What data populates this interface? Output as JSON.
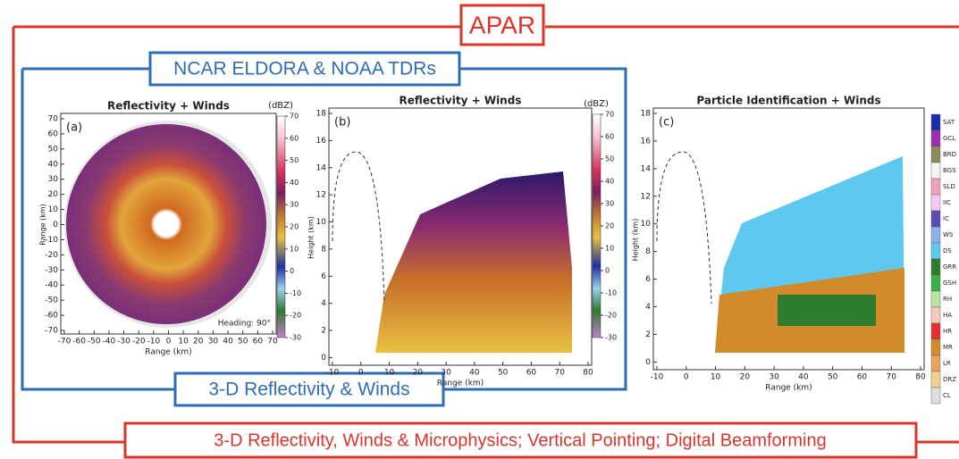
{
  "header": {
    "title": "APAR"
  },
  "airborne": {
    "title": "NCAR ELDORA & NOAA TDRs",
    "caption": "3-D Reflectivity & Winds"
  },
  "footer": {
    "caption": "3-D Reflectivity, Winds & Microphysics; Vertical Pointing; Digital Beamforming"
  },
  "panels": [
    {
      "label": "(a)",
      "title": "Reflectivity + Winds",
      "x_label": "Range (km)",
      "y_label": "Range (km)",
      "xlim": [
        -70,
        70
      ],
      "ylim": [
        -70,
        70
      ],
      "xticks": [
        -70,
        -60,
        -50,
        -40,
        -30,
        -20,
        -10,
        0,
        10,
        20,
        30,
        40,
        50,
        60,
        70
      ],
      "yticks": [
        70,
        60,
        50,
        40,
        30,
        20,
        10,
        0,
        -10,
        -20,
        -30,
        -40,
        -50,
        -60,
        -70
      ],
      "note": "Heading:  90°",
      "colorbar": {
        "unit": "(dBZ)",
        "lim": [
          -30,
          70
        ],
        "ticks": [
          70,
          60,
          50,
          40,
          30,
          20,
          10,
          0,
          -10,
          -20,
          -30
        ]
      }
    },
    {
      "label": "(b)",
      "title": "Reflectivity + Winds",
      "x_label": "Range (km)",
      "y_label": "Height (km)",
      "xlim": [
        -10,
        80
      ],
      "ylim": [
        -0.3,
        18
      ],
      "xticks": [
        -10,
        0,
        10,
        20,
        30,
        40,
        50,
        60,
        70,
        80
      ],
      "yticks": [
        0,
        2,
        4,
        6,
        8,
        10,
        12,
        14,
        16,
        18
      ],
      "colorbar": {
        "unit": "(dBZ)",
        "lim": [
          -30,
          70
        ],
        "ticks": [
          70,
          60,
          50,
          40,
          30,
          20,
          10,
          0,
          -10,
          -20,
          -30
        ]
      }
    },
    {
      "label": "(c)",
      "title": "Particle Identification + Winds",
      "x_label": "Range (km)",
      "y_label": "Height (km)",
      "xlim": [
        -10,
        80
      ],
      "ylim": [
        -0.3,
        18
      ],
      "xticks": [
        -10,
        0,
        10,
        20,
        30,
        40,
        50,
        60,
        70,
        80
      ],
      "yticks": [
        0,
        2,
        4,
        6,
        8,
        10,
        12,
        14,
        16,
        18
      ]
    }
  ],
  "legend": {
    "items": [
      {
        "name": "SAT",
        "color": "#1a2ea8"
      },
      {
        "name": "GCL",
        "color": "#9b2fae"
      },
      {
        "name": "BRD",
        "color": "#8a8a5a"
      },
      {
        "name": "BGS",
        "color": "#f4f4f4"
      },
      {
        "name": "SLD",
        "color": "#f2a0b8"
      },
      {
        "name": "IIC",
        "color": "#f5c9ef"
      },
      {
        "name": "IC",
        "color": "#5d4bb8"
      },
      {
        "name": "WS",
        "color": "#8cb0e8"
      },
      {
        "name": "DS",
        "color": "#5fc8f0"
      },
      {
        "name": "GRR",
        "color": "#2e7d2e"
      },
      {
        "name": "GSH",
        "color": "#3cb043"
      },
      {
        "name": "RH",
        "color": "#b8e6a0"
      },
      {
        "name": "HA",
        "color": "#f6c6c0"
      },
      {
        "name": "HR",
        "color": "#e23030"
      },
      {
        "name": "MR",
        "color": "#d28b2a"
      },
      {
        "name": "LR",
        "color": "#e9a35a"
      },
      {
        "name": "DRZ",
        "color": "#f1d28a"
      },
      {
        "name": "CL",
        "color": "#dedede"
      }
    ]
  }
}
